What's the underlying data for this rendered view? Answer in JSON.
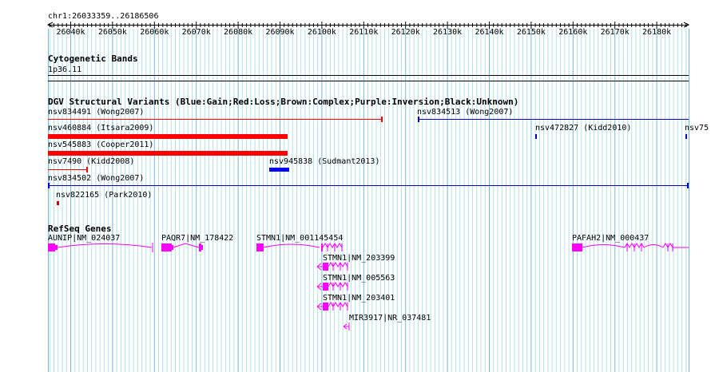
{
  "ruler": {
    "range_label": "chr1:26033359..26186506",
    "ticks": [
      "26040k",
      "26050k",
      "26060k",
      "26070k",
      "26080k",
      "26090k",
      "26100k",
      "26110k",
      "26120k",
      "26130k",
      "26140k",
      "26150k",
      "26160k",
      "26170k",
      "26180k"
    ]
  },
  "cytobands": {
    "title": "Cytogenetic Bands",
    "band": "1p36.11"
  },
  "dgv": {
    "title": "DGV Structural Variants (Blue:Gain;Red:Loss;Brown:Complex;Purple:Inversion;Black:Unknown)",
    "colors": {
      "loss": "#ff0000",
      "gain": "#0000ff",
      "line_gain": "#0000cc"
    },
    "features": [
      "nsv834491 (Wong2007)",
      "nsv834513 (Wong2007)",
      "nsv460884 (Itsara2009)",
      "nsv472827 (Kidd2010)",
      "nsv75",
      "nsv545883 (Cooper2011)",
      "nsv7490 (Kidd2008)",
      "nsv945838 (Sudmant2013)",
      "nsv834502 (Wong2007)",
      "nsv822165 (Park2010)"
    ]
  },
  "refseq": {
    "title": "RefSeq Genes",
    "color": "#ff00ff",
    "genes": [
      "AUNIP|NM_024037",
      "PAQR7|NM_178422",
      "STMN1|NM_001145454",
      "PAFAH2|NM_000437",
      "STMN1|NM_203399",
      "STMN1|NM_005563",
      "STMN1|NM_203401",
      "MIR3917|NR_037481"
    ]
  }
}
